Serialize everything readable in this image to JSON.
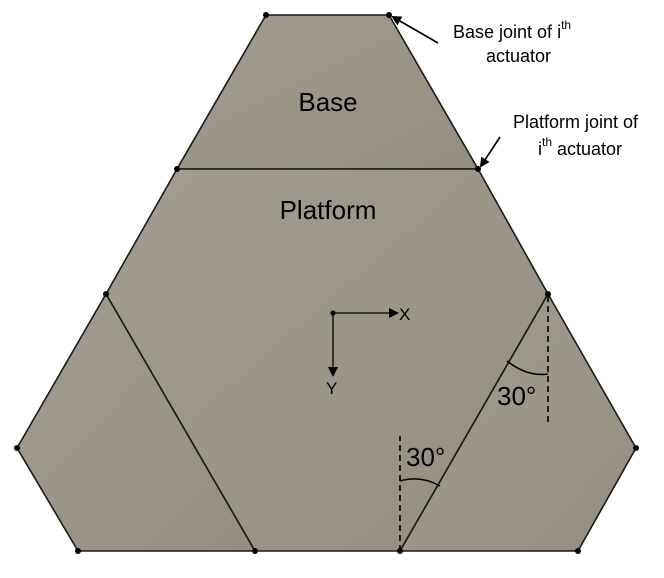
{
  "labels": {
    "base": "Base",
    "platform": "Platform",
    "base_joint_line1": "Base joint of i",
    "base_joint_sup": "th",
    "base_joint_line2": "actuator",
    "platform_joint_line1": "Platform joint of",
    "platform_joint_i": "i",
    "platform_joint_sup": "th",
    "platform_joint_line2": " actuator",
    "angle_right": "30°",
    "angle_bottom": "30°",
    "axis_x": "X",
    "axis_y": "Y"
  },
  "colors": {
    "panel_fill": "#9e978a",
    "edge": "#1a1a1a",
    "background": "#ffffff"
  }
}
